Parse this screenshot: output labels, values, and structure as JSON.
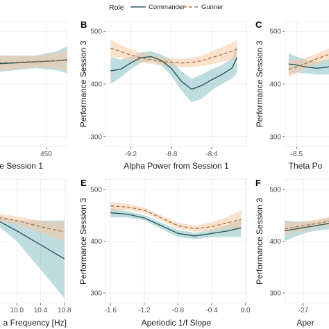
{
  "legend": {
    "title": "Role",
    "entries": [
      {
        "name": "Commander",
        "color": "#2a5a5f",
        "dash": "solid",
        "band": "#8bbfc4"
      },
      {
        "name": "Gunner",
        "color": "#b0764a",
        "dash": "dashed",
        "band": "#f5c9a3"
      }
    ]
  },
  "chart_data": [
    {
      "panel": "A",
      "label": "",
      "type": "line",
      "xlabel": "ce Session 1",
      "ylabel": "",
      "xlim": [
        400,
        470
      ],
      "ylim": [
        280,
        520
      ],
      "xticks": [
        450
      ],
      "xtick_labels": [
        "450"
      ],
      "yticks": [],
      "ytick_labels": [],
      "series": [
        {
          "name": "Commander",
          "x": [
            400,
            420,
            440,
            460,
            470
          ],
          "y": [
            438,
            440,
            442,
            444,
            446
          ],
          "lo": [
            422,
            426,
            430,
            426,
            420
          ],
          "hi": [
            454,
            454,
            454,
            462,
            472
          ]
        },
        {
          "name": "Gunner",
          "x": [
            400,
            420,
            440,
            460,
            470
          ],
          "y": [
            440,
            441,
            443,
            444,
            445
          ],
          "lo": [
            425,
            428,
            432,
            430,
            425
          ],
          "hi": [
            455,
            454,
            454,
            458,
            465
          ]
        }
      ]
    },
    {
      "panel": "B",
      "label": "B",
      "type": "line",
      "xlabel": "Alpha Power from Session 1",
      "ylabel": "Performance Session 3",
      "xlim": [
        -9.45,
        -8.05
      ],
      "ylim": [
        280,
        520
      ],
      "xticks": [
        -9.2,
        -8.8,
        -8.4
      ],
      "xtick_labels": [
        "-9.2",
        "-8.8",
        "-8.4"
      ],
      "yticks": [
        300,
        400,
        500
      ],
      "ytick_labels": [
        "300",
        "400",
        "500"
      ],
      "series": [
        {
          "name": "Commander",
          "x": [
            -9.4,
            -9.3,
            -9.2,
            -9.1,
            -9.0,
            -8.9,
            -8.8,
            -8.7,
            -8.6,
            -8.5,
            -8.4,
            -8.3,
            -8.2,
            -8.15
          ],
          "y": [
            425,
            428,
            440,
            450,
            452,
            445,
            430,
            405,
            390,
            397,
            408,
            418,
            430,
            450
          ],
          "lo": [
            400,
            412,
            428,
            440,
            444,
            436,
            416,
            388,
            365,
            372,
            388,
            400,
            410,
            420
          ],
          "hi": [
            452,
            446,
            452,
            460,
            462,
            456,
            446,
            424,
            410,
            418,
            428,
            436,
            448,
            475
          ]
        },
        {
          "name": "Gunner",
          "x": [
            -9.4,
            -9.3,
            -9.2,
            -9.1,
            -9.0,
            -8.9,
            -8.8,
            -8.7,
            -8.6,
            -8.5,
            -8.4,
            -8.3,
            -8.2,
            -8.15
          ],
          "y": [
            468,
            462,
            455,
            450,
            446,
            443,
            441,
            440,
            441,
            444,
            450,
            456,
            462,
            466
          ],
          "lo": [
            452,
            450,
            445,
            441,
            438,
            435,
            433,
            432,
            432,
            434,
            438,
            442,
            446,
            448
          ],
          "hi": [
            485,
            474,
            466,
            459,
            454,
            451,
            449,
            448,
            450,
            454,
            462,
            470,
            478,
            484
          ]
        }
      ]
    },
    {
      "panel": "C",
      "label": "C",
      "type": "line",
      "xlabel": "Theta Po",
      "ylabel": "Performance Session 3",
      "xlim": [
        -8.62,
        -8.0
      ],
      "ylim": [
        280,
        520
      ],
      "xticks": [
        -8.5
      ],
      "xtick_labels": [
        "-8.5"
      ],
      "yticks": [
        300,
        400,
        500
      ],
      "ytick_labels": [
        "300",
        "400",
        "500"
      ],
      "series": [
        {
          "name": "Commander",
          "x": [
            -8.58,
            -8.5,
            -8.4,
            -8.3,
            -8.2,
            -8.1,
            -8.0
          ],
          "y": [
            438,
            436,
            432,
            430,
            432,
            436,
            440
          ],
          "lo": [
            418,
            422,
            420,
            418,
            418,
            420,
            422
          ],
          "hi": [
            458,
            452,
            446,
            442,
            446,
            452,
            458
          ]
        },
        {
          "name": "Gunner",
          "x": [
            -8.58,
            -8.5,
            -8.4,
            -8.3,
            -8.2,
            -8.1,
            -8.0
          ],
          "y": [
            428,
            432,
            440,
            448,
            455,
            462,
            470
          ],
          "lo": [
            412,
            420,
            430,
            438,
            444,
            450,
            456
          ],
          "hi": [
            444,
            446,
            450,
            458,
            466,
            474,
            484
          ]
        }
      ]
    },
    {
      "panel": "D",
      "label": "",
      "type": "line",
      "xlabel": "a Frequency [Hz]",
      "ylabel": "",
      "xlim": [
        9.6,
        10.85
      ],
      "ylim": [
        280,
        520
      ],
      "xticks": [
        10.0,
        10.4,
        10.8
      ],
      "xtick_labels": [
        "10.0",
        "10.4",
        "10.8"
      ],
      "yticks": [],
      "ytick_labels": [],
      "series": [
        {
          "name": "Commander",
          "x": [
            9.6,
            10.0,
            10.4,
            10.8
          ],
          "y": [
            445,
            420,
            393,
            366
          ],
          "lo": [
            438,
            400,
            345,
            290
          ],
          "hi": [
            452,
            440,
            440,
            440
          ]
        },
        {
          "name": "Gunner",
          "x": [
            9.6,
            10.0,
            10.4,
            10.8
          ],
          "y": [
            447,
            440,
            428,
            418
          ],
          "lo": [
            440,
            432,
            416,
            400
          ],
          "hi": [
            454,
            448,
            440,
            436
          ]
        }
      ]
    },
    {
      "panel": "E",
      "label": "E",
      "type": "line",
      "xlabel": "Aperiodic 1/f Slope",
      "ylabel": "Performance Session 3",
      "xlim": [
        -1.66,
        0.02
      ],
      "ylim": [
        280,
        520
      ],
      "xticks": [
        -1.6,
        -1.2,
        -0.8,
        -0.4,
        0.0
      ],
      "xtick_labels": [
        "-1.6",
        "-1.2",
        "-0.8",
        "-0.4",
        "0.0"
      ],
      "yticks": [
        300,
        400,
        500
      ],
      "ytick_labels": [
        "300",
        "400",
        "500"
      ],
      "series": [
        {
          "name": "Commander",
          "x": [
            -1.6,
            -1.4,
            -1.2,
            -1.0,
            -0.8,
            -0.6,
            -0.4,
            -0.2,
            -0.05
          ],
          "y": [
            455,
            452,
            445,
            430,
            415,
            410,
            415,
            420,
            426
          ],
          "lo": [
            446,
            446,
            440,
            424,
            408,
            404,
            408,
            408,
            408
          ],
          "hi": [
            464,
            458,
            450,
            436,
            422,
            416,
            422,
            432,
            444
          ]
        },
        {
          "name": "Gunner",
          "x": [
            -1.6,
            -1.4,
            -1.2,
            -1.0,
            -0.8,
            -0.6,
            -0.4,
            -0.2,
            -0.05
          ],
          "y": [
            468,
            466,
            460,
            445,
            430,
            424,
            428,
            436,
            442
          ],
          "lo": [
            460,
            460,
            455,
            440,
            424,
            418,
            420,
            424,
            424
          ],
          "hi": [
            476,
            472,
            465,
            450,
            436,
            430,
            436,
            448,
            460
          ]
        }
      ]
    },
    {
      "panel": "F",
      "label": "F",
      "type": "line",
      "xlabel": "Aper",
      "ylabel": "Performance Session 3",
      "xlim": [
        -30,
        -20
      ],
      "ylim": [
        280,
        520
      ],
      "xticks": [
        -27
      ],
      "xtick_labels": [
        "-27"
      ],
      "yticks": [
        300,
        400,
        500
      ],
      "ytick_labels": [
        "300",
        "400",
        "500"
      ],
      "series": [
        {
          "name": "Commander",
          "x": [
            -30,
            -28,
            -26,
            -24,
            -22,
            -20
          ],
          "y": [
            420,
            424,
            428,
            432,
            436,
            440
          ],
          "lo": [
            400,
            410,
            418,
            422,
            424,
            426
          ],
          "hi": [
            440,
            438,
            438,
            442,
            448,
            454
          ]
        },
        {
          "name": "Gunner",
          "x": [
            -30,
            -28,
            -26,
            -24,
            -22,
            -20
          ],
          "y": [
            424,
            428,
            432,
            436,
            440,
            444
          ],
          "lo": [
            412,
            418,
            424,
            428,
            430,
            432
          ],
          "hi": [
            436,
            438,
            440,
            444,
            450,
            456
          ]
        }
      ]
    }
  ]
}
